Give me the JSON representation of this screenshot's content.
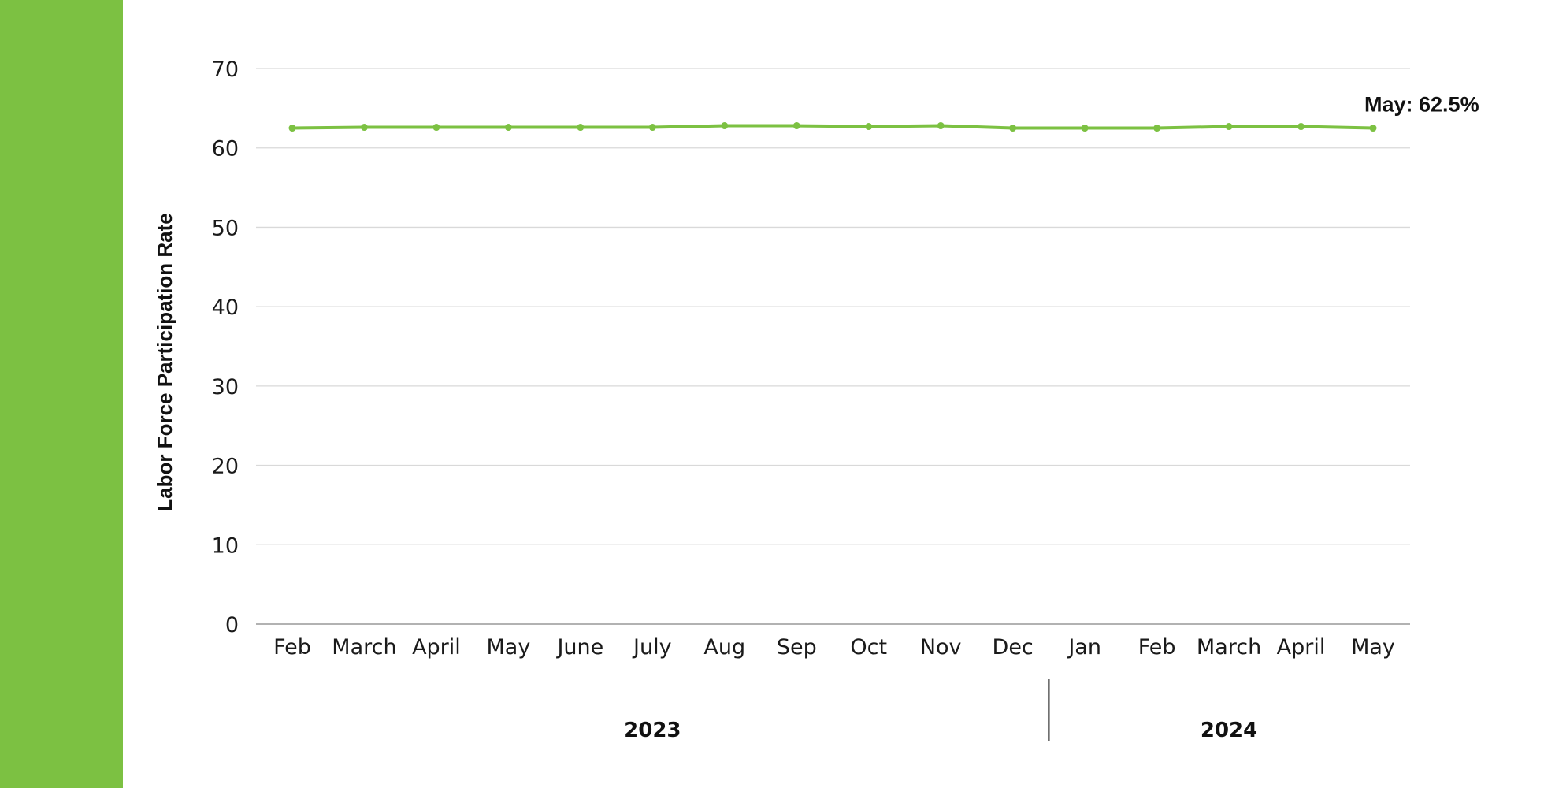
{
  "colors": {
    "accent": "#7cc142",
    "series": "#7cc142",
    "grid": "#d9d9d9",
    "axis": "#999999",
    "separator": "#111111"
  },
  "chart_data": {
    "type": "line",
    "ylabel": "Labor Force Participation Rate",
    "ylim": [
      0,
      70
    ],
    "yticks": [
      0,
      10,
      20,
      30,
      40,
      50,
      60,
      70
    ],
    "grid": true,
    "categories": [
      "Feb",
      "March",
      "April",
      "May",
      "June",
      "July",
      "Aug",
      "Sep",
      "Oct",
      "Nov",
      "Dec",
      "Jan",
      "Feb",
      "March",
      "April",
      "May"
    ],
    "groups": [
      {
        "label": "2023",
        "start": 0,
        "end": 10
      },
      {
        "label": "2024",
        "start": 11,
        "end": 15
      }
    ],
    "series": [
      {
        "values": [
          62.5,
          62.6,
          62.6,
          62.6,
          62.6,
          62.6,
          62.8,
          62.8,
          62.7,
          62.8,
          62.5,
          62.5,
          62.5,
          62.7,
          62.7,
          62.5
        ]
      }
    ],
    "annotation": {
      "text": "May: 62.5%",
      "index": 15
    }
  }
}
